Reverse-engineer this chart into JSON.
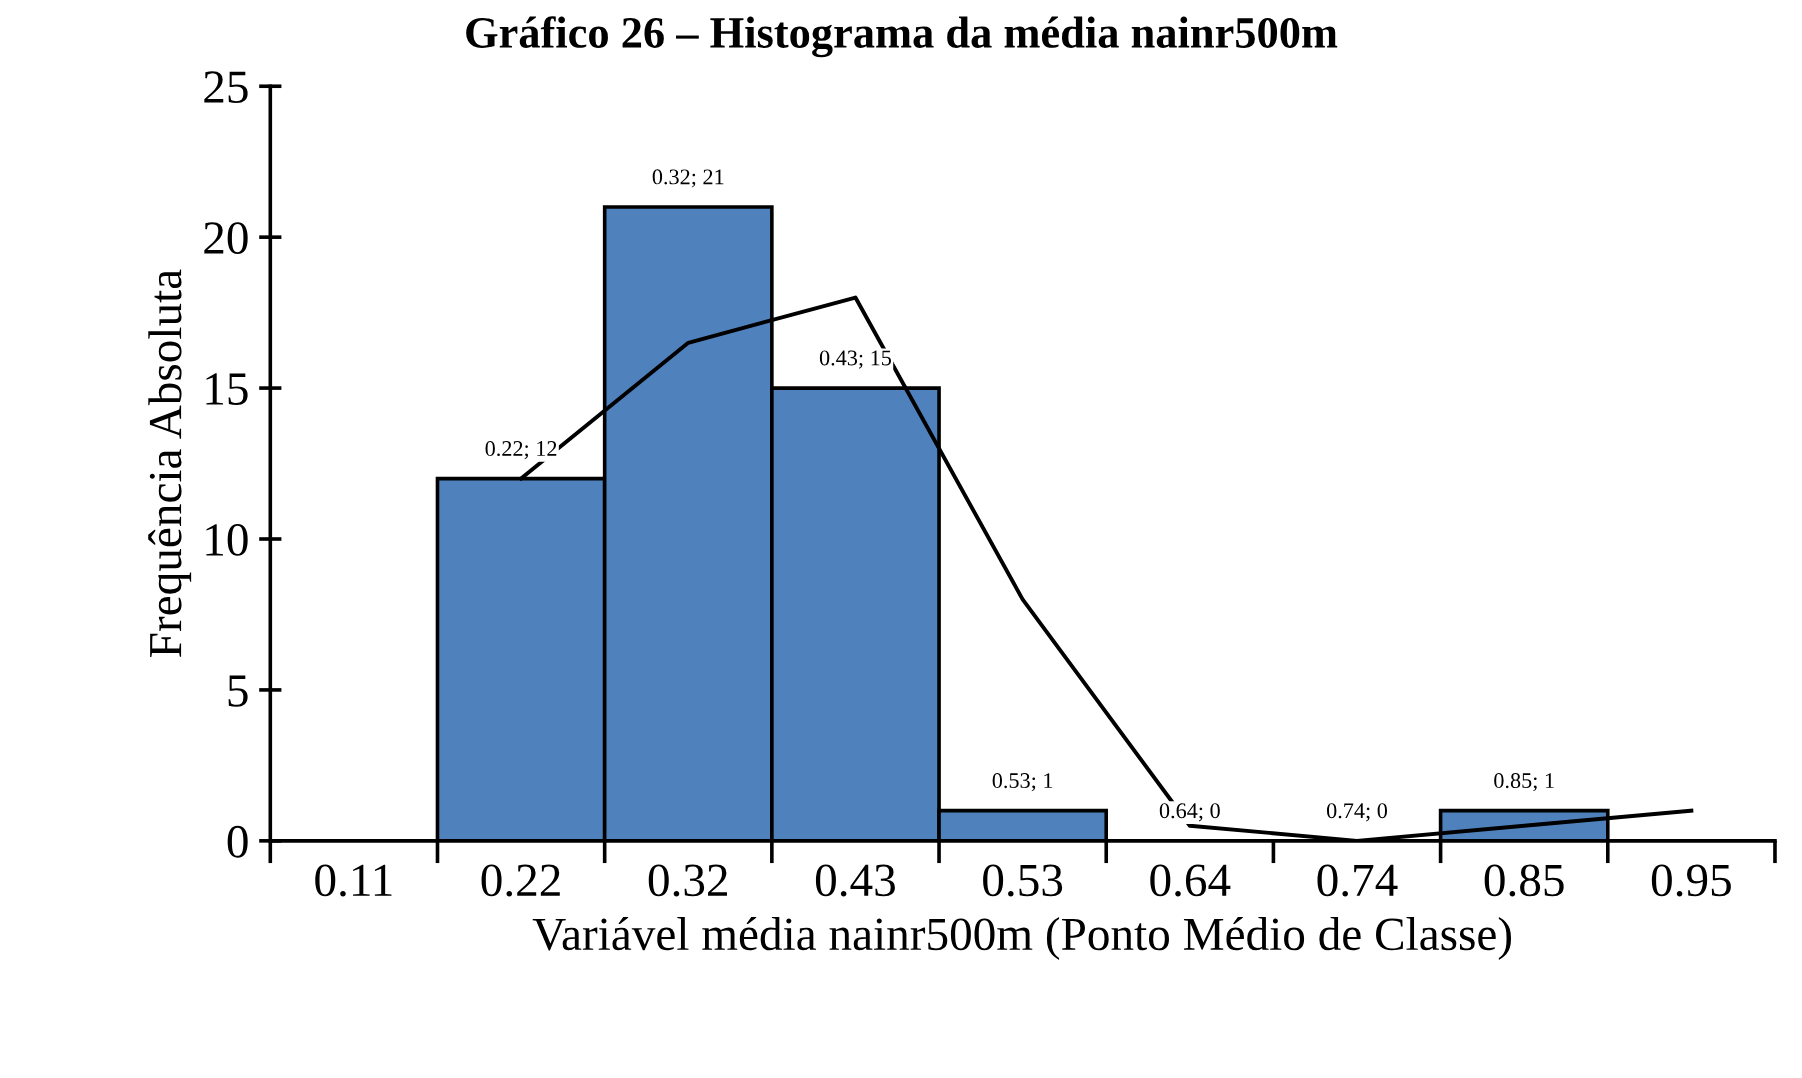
{
  "chart_data": {
    "type": "bar",
    "title": "Gráfico 26 – Histograma da média nainr500m",
    "xlabel": "Variável média nainr500m (Ponto Médio de Classe)",
    "ylabel": "Frequência Absoluta",
    "categories": [
      "0.11",
      "0.22",
      "0.32",
      "0.43",
      "0.53",
      "0.64",
      "0.74",
      "0.85",
      "0.95"
    ],
    "series": [
      {
        "color": "#4f81bd",
        "values": [
          null,
          12,
          21,
          15,
          1,
          0,
          0,
          1,
          null
        ],
        "value_labels": [
          null,
          "0.22; 12",
          "0.32; 21",
          "0.43; 15",
          "0.53; 1",
          "0.64; 0",
          "0.74; 0",
          "0.85; 1",
          null
        ]
      },
      {
        "type": "line",
        "color": "#000000",
        "values": [
          null,
          12,
          16.5,
          18,
          8,
          0.5,
          0,
          0.5,
          1
        ]
      }
    ],
    "ylim": [
      0,
      25
    ],
    "yticks": [
      0,
      5,
      10,
      15,
      20,
      25
    ],
    "grid": false,
    "marker": "none",
    "line_style": "solid"
  }
}
